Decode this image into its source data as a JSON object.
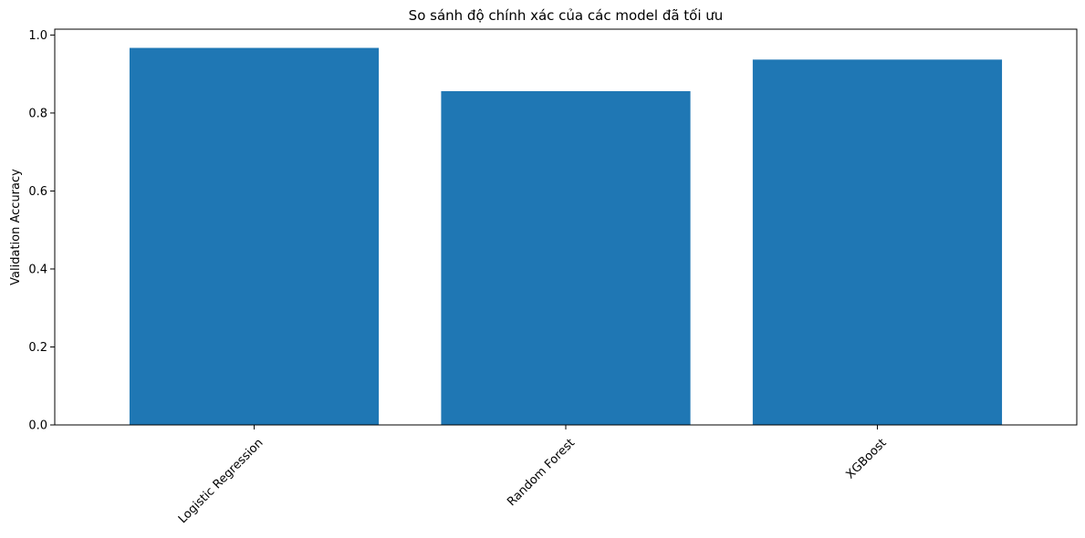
{
  "chart_data": {
    "type": "bar",
    "title": "So sánh độ chính xác của các model đã tối ưu",
    "xlabel": "",
    "ylabel": "Validation Accuracy",
    "categories": [
      "Logistic Regression",
      "Random Forest",
      "XGBoost"
    ],
    "values": [
      0.967,
      0.856,
      0.937
    ],
    "ylim": [
      0,
      1.015
    ],
    "yticks": [
      0.0,
      0.2,
      0.4,
      0.6,
      0.8,
      1.0
    ],
    "ytick_labels": [
      "0.0",
      "0.2",
      "0.4",
      "0.6",
      "0.8",
      "1.0"
    ],
    "xtick_rotation_deg": 45,
    "grid": false,
    "legend": "none",
    "bar_color": "#1f77b4"
  }
}
